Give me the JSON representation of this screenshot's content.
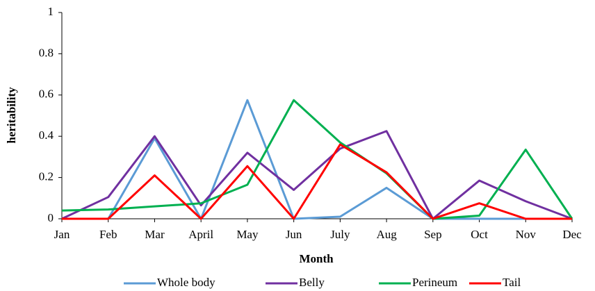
{
  "chart_data": {
    "type": "line",
    "x_label": "Month",
    "y_label": "heritability",
    "categories": [
      "Jan",
      "Feb",
      "Mar",
      "April",
      "May",
      "Jun",
      "July",
      "Aug",
      "Sep",
      "Oct",
      "Nov",
      "Dec"
    ],
    "series": [
      {
        "name": "Whole body",
        "color": "#5b9bd5",
        "values": [
          0,
          0,
          0.39,
          0,
          0.575,
          0,
          0.01,
          0.15,
          0,
          0,
          0,
          0
        ]
      },
      {
        "name": "Belly",
        "color": "#7030a0",
        "values": [
          0,
          0.105,
          0.4,
          0.065,
          0.32,
          0.14,
          0.34,
          0.425,
          0,
          0.185,
          0.085,
          0
        ]
      },
      {
        "name": "Perineum",
        "color": "#00b050",
        "values": [
          0.04,
          0.045,
          0.06,
          0.075,
          0.165,
          0.575,
          0.37,
          0.22,
          0,
          0.015,
          0.335,
          0
        ]
      },
      {
        "name": "Tail",
        "color": "#ff0000",
        "values": [
          0,
          0,
          0.21,
          0,
          0.255,
          0,
          0.36,
          0.225,
          0,
          0.075,
          0,
          0
        ]
      }
    ],
    "ylim": [
      0,
      1
    ],
    "yticks": [
      0,
      0.2,
      0.4,
      0.6,
      0.8,
      1
    ],
    "grid": false,
    "legend": "bottom"
  }
}
